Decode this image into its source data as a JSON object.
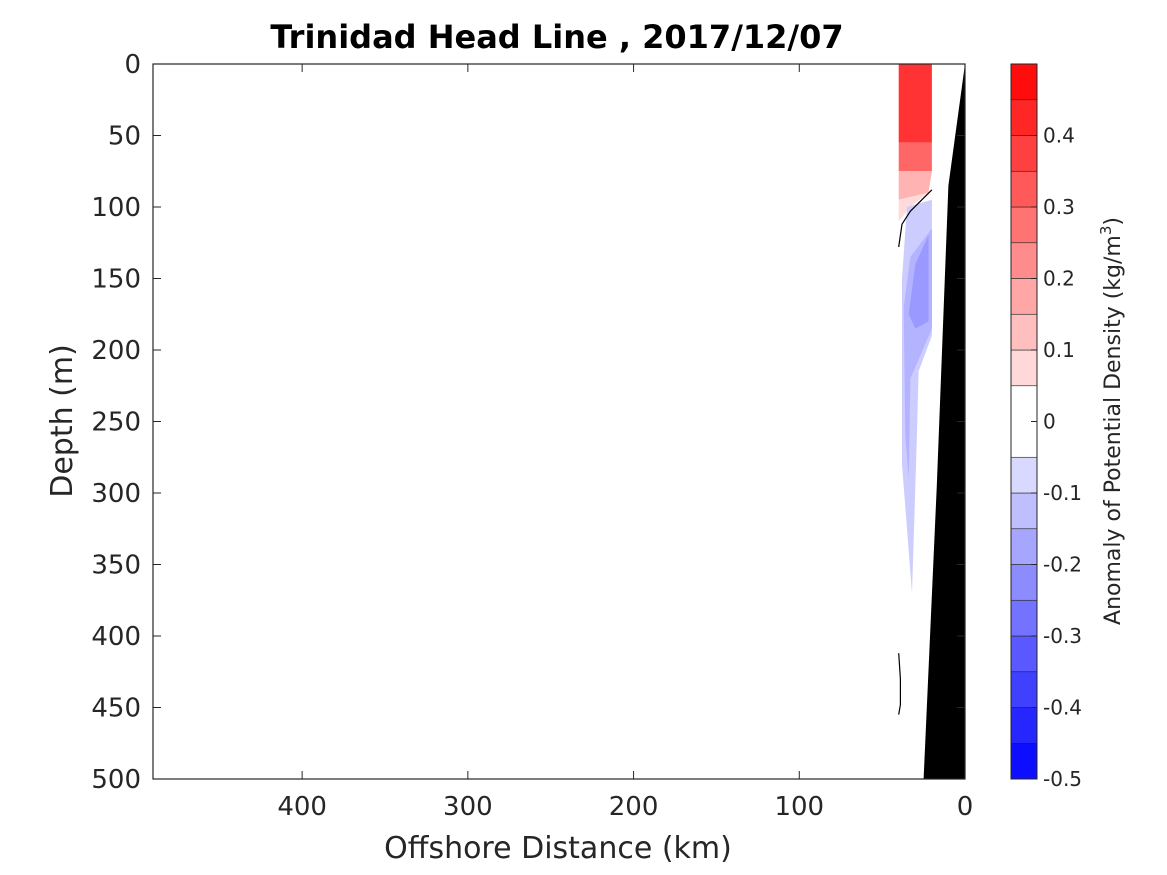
{
  "chart_data": {
    "type": "heatmap",
    "title": "Trinidad Head Line , 2017/12/07",
    "xlabel": "Offshore Distance (km)",
    "ylabel": "Depth (m)",
    "xlim": [
      490,
      0
    ],
    "ylim": [
      0,
      500
    ],
    "x_reversed": true,
    "y_reversed": true,
    "xticks": [
      400,
      300,
      200,
      100,
      0
    ],
    "yticks": [
      0,
      50,
      100,
      150,
      200,
      250,
      300,
      350,
      400,
      450,
      500
    ],
    "colorbar": {
      "label": "Anomaly of Potential Density",
      "unit_text": "(kg/m",
      "unit_exp": "3",
      "unit_close": ")",
      "range": [
        -0.5,
        0.5
      ],
      "ticks": [
        "-0.5",
        "-0.4",
        "-0.3",
        "-0.2",
        "-0.1",
        "0",
        "0.1",
        "0.2",
        "0.3",
        "0.4"
      ],
      "tick_values": [
        -0.5,
        -0.4,
        -0.3,
        -0.2,
        -0.1,
        0,
        0.1,
        0.2,
        0.3,
        0.4
      ],
      "levels": [
        -0.5,
        -0.45,
        -0.4,
        -0.35,
        -0.3,
        -0.25,
        -0.2,
        -0.15,
        -0.1,
        -0.05,
        0.05,
        0.1,
        0.15,
        0.2,
        0.25,
        0.3,
        0.35,
        0.4,
        0.45,
        0.5
      ]
    },
    "anomaly_regions": [
      {
        "name": "positive-core",
        "value": 0.4,
        "points": [
          [
            40,
            0
          ],
          [
            20,
            0
          ],
          [
            20,
            55
          ],
          [
            40,
            55
          ]
        ]
      },
      {
        "name": "positive-mid",
        "value": 0.3,
        "points": [
          [
            40,
            55
          ],
          [
            20,
            55
          ],
          [
            20,
            75
          ],
          [
            40,
            75
          ]
        ]
      },
      {
        "name": "positive-low",
        "value": 0.15,
        "points": [
          [
            40,
            75
          ],
          [
            20,
            75
          ],
          [
            22,
            90
          ],
          [
            40,
            95
          ]
        ]
      },
      {
        "name": "positive-edge",
        "value": 0.07,
        "points": [
          [
            40,
            95
          ],
          [
            22,
            90
          ],
          [
            33,
            100
          ],
          [
            40,
            110
          ]
        ]
      },
      {
        "name": "negative-outer",
        "value": -0.1,
        "points": [
          [
            38,
            150
          ],
          [
            35,
            100
          ],
          [
            20,
            95
          ],
          [
            20,
            190
          ],
          [
            28,
            215
          ],
          [
            29,
            260
          ],
          [
            32,
            370
          ],
          [
            38,
            280
          ]
        ]
      },
      {
        "name": "negative-mid",
        "value": -0.15,
        "points": [
          [
            37,
            170
          ],
          [
            33,
            135
          ],
          [
            20,
            115
          ],
          [
            20,
            185
          ],
          [
            33,
            220
          ],
          [
            34,
            290
          ],
          [
            36,
            260
          ]
        ]
      },
      {
        "name": "negative-core",
        "value": -0.2,
        "points": [
          [
            34,
            175
          ],
          [
            30,
            140
          ],
          [
            22,
            120
          ],
          [
            22,
            180
          ],
          [
            30,
            185
          ]
        ]
      }
    ],
    "zero_contours": [
      [
        [
          40,
          128
        ],
        [
          38,
          112
        ],
        [
          33,
          103
        ],
        [
          20,
          88
        ]
      ],
      [
        [
          40,
          412
        ],
        [
          39,
          430
        ],
        [
          39,
          448
        ],
        [
          40,
          455
        ]
      ]
    ],
    "bathymetry": [
      [
        0,
        0
      ],
      [
        10,
        85
      ],
      [
        17,
        295
      ],
      [
        25,
        500
      ],
      [
        0,
        500
      ]
    ],
    "data_limit": [
      [
        0,
        0
      ],
      [
        10,
        85
      ],
      [
        17,
        295
      ],
      [
        20,
        500
      ],
      [
        20,
        0
      ]
    ],
    "colors": {
      "bathymetry": "#000000",
      "zero_contour": "#000000",
      "negative": "#0000ff",
      "positive": "#ff0000"
    }
  }
}
